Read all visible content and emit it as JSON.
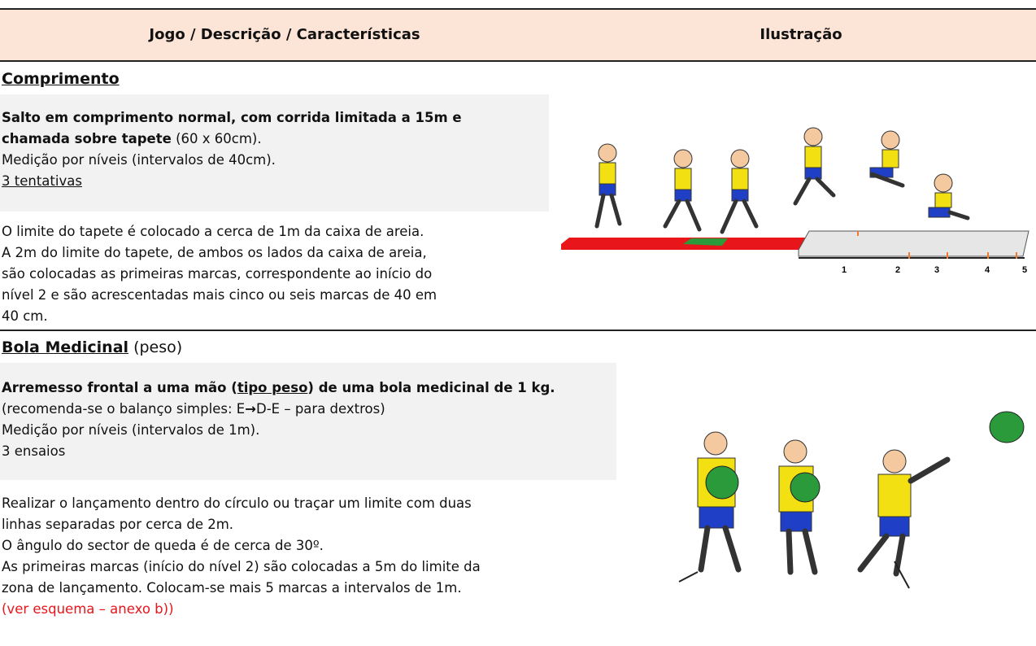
{
  "header": {
    "col_description": "Jogo / Descrição / Características",
    "col_illustration": "Ilustração"
  },
  "sections": [
    {
      "title": "Comprimento",
      "box": [
        "Salto em comprimento normal, com corrida limitada a 15m e",
        "chamada sobre tapete",
        " (60 x 60cm).",
        "Medição por níveis (intervalos de 40cm).",
        "3 tentativas"
      ],
      "body": [
        "O limite do tapete é colocado a cerca de 1m da caixa de areia.",
        "A 2m do limite do tapete, de ambos os lados da caixa de areia,",
        "são colocadas as primeiras marcas, correspondente ao início do",
        "nível 2 e são acrescentadas mais cinco ou seis marcas de 40 em",
        "40 cm."
      ],
      "illustration_labels": [
        "1",
        "2",
        "3",
        "4",
        "5"
      ]
    },
    {
      "title": "Bola Medicinal",
      "title_suffix": " (peso)",
      "box": [
        "Arremesso frontal a uma mão (",
        "tipo peso",
        ") de uma bola medicinal de 1 kg.",
        "(recomenda-se o balanço simples: E",
        "→",
        "D-E – para dextros)",
        "Medição por níveis (intervalos de 1m).",
        "3 ensaios"
      ],
      "body": [
        "Realizar o lançamento dentro do círculo ou traçar um limite com duas",
        "linhas separadas por cerca de 2m.",
        "O ângulo do sector de queda é de cerca de 30º.",
        "As primeiras marcas (início do nível 2) são colocadas a 5m do limite da",
        "zona de lançamento. Colocam-se mais 5 marcas a intervalos de 1m.",
        "(ver esquema – anexo b))"
      ]
    }
  ]
}
